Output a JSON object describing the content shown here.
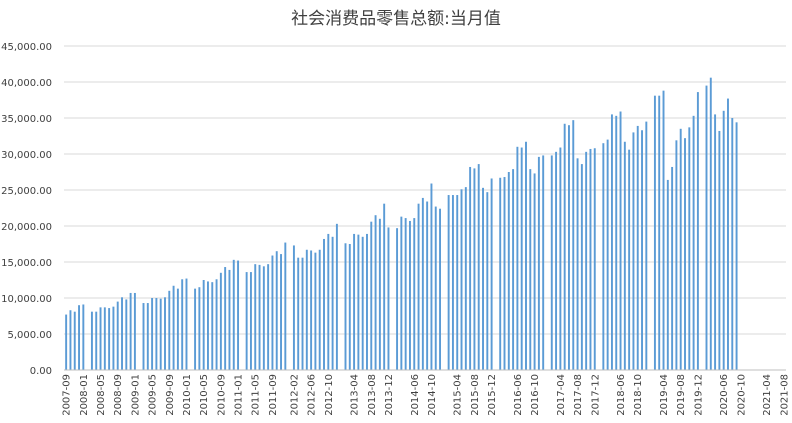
{
  "chart_data": {
    "type": "bar",
    "title": "社会消费品零售总额:当月值",
    "xlabel": "",
    "ylabel": "",
    "ylim": [
      0,
      45000
    ],
    "yticks": [
      "0.00",
      "5,000.00",
      "10,000.00",
      "15,000.00",
      "20,000.00",
      "25,000.00",
      "30,000.00",
      "35,000.00",
      "40,000.00",
      "45,000.00"
    ],
    "grid": true,
    "bar_color": "#5b9bd5",
    "x_tick_labels": [
      "2007-09",
      "2008-01",
      "2008-05",
      "2008-09",
      "2009-01",
      "2009-05",
      "2009-09",
      "2010-01",
      "2010-05",
      "2010-09",
      "2011-01",
      "2011-05",
      "2011-09",
      "2012-02",
      "2012-06",
      "2012-10",
      "2013-04",
      "2013-08",
      "2013-12",
      "2014-06",
      "2014-10",
      "2015-04",
      "2015-08",
      "2015-12",
      "2016-06",
      "2016-10",
      "2017-04",
      "2017-08",
      "2017-12",
      "2018-06",
      "2018-10",
      "2019-04",
      "2019-08",
      "2019-12",
      "2020-06",
      "2020-10",
      "2021-04",
      "2021-08"
    ],
    "series": [
      {
        "values": [
          {
            "x": "2007-09",
            "y": 7700
          },
          {
            "x": "2007-10",
            "y": 8300
          },
          {
            "x": "2007-11",
            "y": 8100
          },
          {
            "x": "2007-12",
            "y": 9000
          },
          {
            "x": "2008-01",
            "y": 9100
          },
          {
            "x": "2008-03",
            "y": 8100
          },
          {
            "x": "2008-04",
            "y": 8100
          },
          {
            "x": "2008-05",
            "y": 8700
          },
          {
            "x": "2008-06",
            "y": 8700
          },
          {
            "x": "2008-07",
            "y": 8600
          },
          {
            "x": "2008-08",
            "y": 8800
          },
          {
            "x": "2008-09",
            "y": 9500
          },
          {
            "x": "2008-10",
            "y": 10100
          },
          {
            "x": "2008-11",
            "y": 9800
          },
          {
            "x": "2008-12",
            "y": 10700
          },
          {
            "x": "2009-01",
            "y": 10700
          },
          {
            "x": "2009-03",
            "y": 9300
          },
          {
            "x": "2009-04",
            "y": 9300
          },
          {
            "x": "2009-05",
            "y": 10000
          },
          {
            "x": "2009-06",
            "y": 10000
          },
          {
            "x": "2009-07",
            "y": 9900
          },
          {
            "x": "2009-08",
            "y": 10100
          },
          {
            "x": "2009-09",
            "y": 11000
          },
          {
            "x": "2009-10",
            "y": 11700
          },
          {
            "x": "2009-11",
            "y": 11300
          },
          {
            "x": "2009-12",
            "y": 12600
          },
          {
            "x": "2010-01",
            "y": 12700
          },
          {
            "x": "2010-03",
            "y": 11300
          },
          {
            "x": "2010-04",
            "y": 11500
          },
          {
            "x": "2010-05",
            "y": 12500
          },
          {
            "x": "2010-06",
            "y": 12300
          },
          {
            "x": "2010-07",
            "y": 12200
          },
          {
            "x": "2010-08",
            "y": 12600
          },
          {
            "x": "2010-09",
            "y": 13500
          },
          {
            "x": "2010-10",
            "y": 14300
          },
          {
            "x": "2010-11",
            "y": 13900
          },
          {
            "x": "2010-12",
            "y": 15300
          },
          {
            "x": "2011-01",
            "y": 15200
          },
          {
            "x": "2011-03",
            "y": 13600
          },
          {
            "x": "2011-04",
            "y": 13600
          },
          {
            "x": "2011-05",
            "y": 14700
          },
          {
            "x": "2011-06",
            "y": 14600
          },
          {
            "x": "2011-07",
            "y": 14400
          },
          {
            "x": "2011-08",
            "y": 14700
          },
          {
            "x": "2011-09",
            "y": 15900
          },
          {
            "x": "2011-10",
            "y": 16500
          },
          {
            "x": "2011-11",
            "y": 16100
          },
          {
            "x": "2011-12",
            "y": 17700
          },
          {
            "x": "2012-02",
            "y": 17300
          },
          {
            "x": "2012-03",
            "y": 15600
          },
          {
            "x": "2012-04",
            "y": 15600
          },
          {
            "x": "2012-05",
            "y": 16700
          },
          {
            "x": "2012-06",
            "y": 16600
          },
          {
            "x": "2012-07",
            "y": 16300
          },
          {
            "x": "2012-08",
            "y": 16700
          },
          {
            "x": "2012-09",
            "y": 18200
          },
          {
            "x": "2012-10",
            "y": 18900
          },
          {
            "x": "2012-11",
            "y": 18500
          },
          {
            "x": "2012-12",
            "y": 20300
          },
          {
            "x": "2013-02",
            "y": 17600
          },
          {
            "x": "2013-03",
            "y": 17500
          },
          {
            "x": "2013-04",
            "y": 18900
          },
          {
            "x": "2013-05",
            "y": 18800
          },
          {
            "x": "2013-06",
            "y": 18500
          },
          {
            "x": "2013-07",
            "y": 18900
          },
          {
            "x": "2013-08",
            "y": 20600
          },
          {
            "x": "2013-09",
            "y": 21500
          },
          {
            "x": "2013-10",
            "y": 21000
          },
          {
            "x": "2013-11",
            "y": 23100
          },
          {
            "x": "2013-12",
            "y": 19800
          },
          {
            "x": "2014-02",
            "y": 19700
          },
          {
            "x": "2014-03",
            "y": 21300
          },
          {
            "x": "2014-04",
            "y": 21100
          },
          {
            "x": "2014-05",
            "y": 20700
          },
          {
            "x": "2014-06",
            "y": 21100
          },
          {
            "x": "2014-07",
            "y": 23100
          },
          {
            "x": "2014-08",
            "y": 23900
          },
          {
            "x": "2014-09",
            "y": 23400
          },
          {
            "x": "2014-10",
            "y": 25900
          },
          {
            "x": "2014-11",
            "y": 22700
          },
          {
            "x": "2014-12",
            "y": 22400
          },
          {
            "x": "2015-02",
            "y": 24300
          },
          {
            "x": "2015-03",
            "y": 24300
          },
          {
            "x": "2015-04",
            "y": 24300
          },
          {
            "x": "2015-05",
            "y": 25100
          },
          {
            "x": "2015-06",
            "y": 25400
          },
          {
            "x": "2015-07",
            "y": 28200
          },
          {
            "x": "2015-08",
            "y": 28000
          },
          {
            "x": "2015-09",
            "y": 28600
          },
          {
            "x": "2015-10",
            "y": 25300
          },
          {
            "x": "2015-11",
            "y": 24700
          },
          {
            "x": "2015-12",
            "y": 26600
          },
          {
            "x": "2016-02",
            "y": 26700
          },
          {
            "x": "2016-03",
            "y": 26800
          },
          {
            "x": "2016-04",
            "y": 27500
          },
          {
            "x": "2016-05",
            "y": 27900
          },
          {
            "x": "2016-06",
            "y": 31000
          },
          {
            "x": "2016-07",
            "y": 30900
          },
          {
            "x": "2016-08",
            "y": 31700
          },
          {
            "x": "2016-09",
            "y": 27900
          },
          {
            "x": "2016-10",
            "y": 27300
          },
          {
            "x": "2016-11",
            "y": 29600
          },
          {
            "x": "2016-12",
            "y": 29800
          },
          {
            "x": "2017-02",
            "y": 29800
          },
          {
            "x": "2017-03",
            "y": 30300
          },
          {
            "x": "2017-04",
            "y": 30900
          },
          {
            "x": "2017-05",
            "y": 34200
          },
          {
            "x": "2017-06",
            "y": 34000
          },
          {
            "x": "2017-07",
            "y": 34700
          },
          {
            "x": "2017-08",
            "y": 29400
          },
          {
            "x": "2017-09",
            "y": 28600
          },
          {
            "x": "2017-10",
            "y": 30300
          },
          {
            "x": "2017-11",
            "y": 30700
          },
          {
            "x": "2017-12",
            "y": 30800
          },
          {
            "x": "2018-02",
            "y": 31500
          },
          {
            "x": "2018-03",
            "y": 32000
          },
          {
            "x": "2018-04",
            "y": 35500
          },
          {
            "x": "2018-05",
            "y": 35300
          },
          {
            "x": "2018-06",
            "y": 35900
          },
          {
            "x": "2018-07",
            "y": 31700
          },
          {
            "x": "2018-08",
            "y": 30600
          },
          {
            "x": "2018-09",
            "y": 33000
          },
          {
            "x": "2018-10",
            "y": 33900
          },
          {
            "x": "2018-11",
            "y": 33300
          },
          {
            "x": "2018-12",
            "y": 34500
          },
          {
            "x": "2019-02",
            "y": 38100
          },
          {
            "x": "2019-03",
            "y": 38100
          },
          {
            "x": "2019-04",
            "y": 38800
          },
          {
            "x": "2019-05",
            "y": 26400
          },
          {
            "x": "2019-06",
            "y": 28200
          },
          {
            "x": "2019-07",
            "y": 31900
          },
          {
            "x": "2019-08",
            "y": 33500
          },
          {
            "x": "2019-09",
            "y": 32200
          },
          {
            "x": "2019-10",
            "y": 33700
          },
          {
            "x": "2019-11",
            "y": 35300
          },
          {
            "x": "2019-12",
            "y": 38600
          },
          {
            "x": "2020-02",
            "y": 39500
          },
          {
            "x": "2020-03",
            "y": 40600
          },
          {
            "x": "2020-04",
            "y": 35500
          },
          {
            "x": "2020-05",
            "y": 33200
          },
          {
            "x": "2020-06",
            "y": 36000
          },
          {
            "x": "2020-07",
            "y": 37700
          },
          {
            "x": "2020-08",
            "y": 35000
          },
          {
            "x": "2020-09",
            "y": 34400
          }
        ]
      }
    ]
  }
}
